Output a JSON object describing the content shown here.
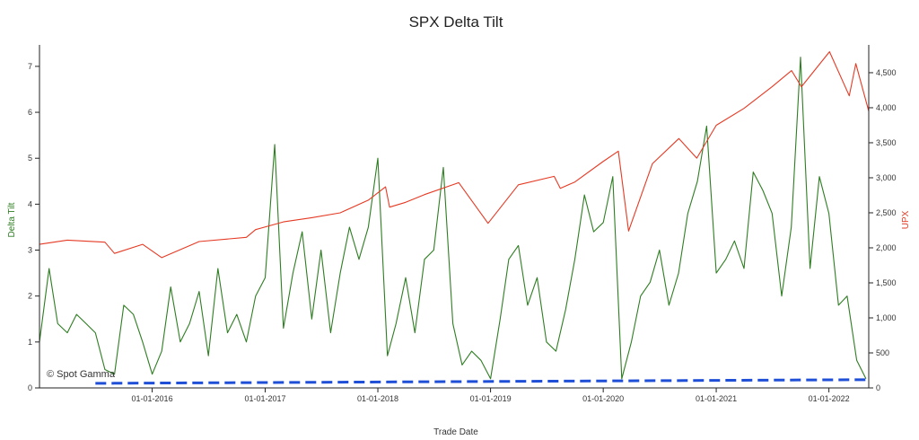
{
  "chart_data": {
    "type": "line",
    "title": "SPX Delta Tilt",
    "xlabel": "Trade Date",
    "ylabel_left": "Delta Tilt",
    "ylabel_right": "UPX",
    "watermark": "© Spot Gamma",
    "x_tick_labels": [
      "01-01-2016",
      "01-01-2017",
      "01-01-2018",
      "01-01-2019",
      "01-01-2020",
      "01-01-2021",
      "01-01-2022"
    ],
    "y_left_ticks": [
      "0",
      "1",
      "2",
      "3",
      "4",
      "5",
      "6",
      "7"
    ],
    "y_right_ticks": [
      "0",
      "500",
      "1,000",
      "1,500",
      "2,000",
      "2,500",
      "3,000",
      "3,500",
      "4,000",
      "4,500"
    ],
    "x_range": [
      "2015-01-01",
      "2022-05-10"
    ],
    "y_left_range": [
      0,
      7.35
    ],
    "y_right_range": [
      0,
      4820
    ],
    "grid": false,
    "colors": {
      "delta_tilt": "#2e7d22",
      "upx": "#e53a24",
      "baseline": "#1f4fd6",
      "left_label": "#2e7d22",
      "right_label": "#e53a24"
    },
    "series": [
      {
        "key": "delta_tilt",
        "axis": "left",
        "x": [
          "2015-01-01",
          "2015-02-01",
          "2015-03-01",
          "2015-04-01",
          "2015-05-01",
          "2015-06-01",
          "2015-07-01",
          "2015-08-01",
          "2015-09-01",
          "2015-10-01",
          "2015-11-01",
          "2015-12-01",
          "2016-01-01",
          "2016-02-01",
          "2016-03-01",
          "2016-04-01",
          "2016-05-01",
          "2016-06-01",
          "2016-07-01",
          "2016-08-01",
          "2016-09-01",
          "2016-10-01",
          "2016-11-01",
          "2016-12-01",
          "2017-01-01",
          "2017-02-01",
          "2017-03-01",
          "2017-04-01",
          "2017-05-01",
          "2017-06-01",
          "2017-07-01",
          "2017-08-01",
          "2017-09-01",
          "2017-10-01",
          "2017-11-01",
          "2017-12-01",
          "2018-01-01",
          "2018-02-01",
          "2018-03-01",
          "2018-04-01",
          "2018-05-01",
          "2018-06-01",
          "2018-07-01",
          "2018-08-01",
          "2018-09-01",
          "2018-10-01",
          "2018-11-01",
          "2018-12-01",
          "2019-01-01",
          "2019-02-01",
          "2019-03-01",
          "2019-04-01",
          "2019-05-01",
          "2019-06-01",
          "2019-07-01",
          "2019-08-01",
          "2019-09-01",
          "2019-10-01",
          "2019-11-01",
          "2019-12-01",
          "2020-01-01",
          "2020-02-01",
          "2020-03-01",
          "2020-04-01",
          "2020-05-01",
          "2020-06-01",
          "2020-07-01",
          "2020-08-01",
          "2020-09-01",
          "2020-10-01",
          "2020-11-01",
          "2020-12-01",
          "2021-01-01",
          "2021-02-01",
          "2021-03-01",
          "2021-04-01",
          "2021-05-01",
          "2021-06-01",
          "2021-07-01",
          "2021-08-01",
          "2021-09-01",
          "2021-10-01",
          "2021-11-01",
          "2021-12-01",
          "2022-01-01",
          "2022-02-01",
          "2022-03-01",
          "2022-04-01",
          "2022-05-01"
        ],
        "values": [
          1.0,
          2.6,
          1.4,
          1.2,
          1.6,
          1.4,
          1.2,
          0.4,
          0.3,
          1.8,
          1.6,
          1.0,
          0.3,
          0.8,
          2.2,
          1.0,
          1.4,
          2.1,
          0.7,
          2.6,
          1.2,
          1.6,
          1.0,
          2.0,
          2.4,
          5.3,
          1.3,
          2.5,
          3.4,
          1.5,
          3.0,
          1.2,
          2.5,
          3.5,
          2.8,
          3.5,
          5.0,
          0.7,
          1.4,
          2.4,
          1.2,
          2.8,
          3.0,
          4.8,
          1.4,
          0.5,
          0.8,
          0.6,
          0.2,
          1.5,
          2.8,
          3.1,
          1.8,
          2.4,
          1.0,
          0.8,
          1.7,
          2.8,
          4.2,
          3.4,
          3.6,
          4.6,
          0.2,
          1.0,
          2.0,
          2.3,
          3.0,
          1.8,
          2.5,
          3.8,
          4.5,
          5.7,
          2.5,
          2.8,
          3.2,
          2.6,
          4.7,
          4.3,
          3.8,
          2.0,
          3.5,
          7.2,
          2.6,
          4.6,
          3.8,
          1.8,
          2.0,
          0.6,
          0.2
        ],
        "name": ""
      },
      {
        "key": "upx",
        "axis": "right",
        "x": [
          "2015-01-01",
          "2015-04-01",
          "2015-08-01",
          "2015-09-01",
          "2015-12-01",
          "2016-02-01",
          "2016-06-01",
          "2016-11-01",
          "2016-12-01",
          "2017-03-01",
          "2017-06-01",
          "2017-09-01",
          "2017-12-01",
          "2018-01-26",
          "2018-02-08",
          "2018-04-01",
          "2018-06-01",
          "2018-09-20",
          "2018-12-24",
          "2019-04-01",
          "2019-07-26",
          "2019-08-15",
          "2019-10-01",
          "2019-12-31",
          "2020-02-19",
          "2020-03-23",
          "2020-06-08",
          "2020-09-02",
          "2020-10-30",
          "2021-01-01",
          "2021-04-01",
          "2021-07-01",
          "2021-09-02",
          "2021-10-04",
          "2022-01-03",
          "2022-03-08",
          "2022-03-29",
          "2022-05-10"
        ],
        "values": [
          2050,
          2110,
          2080,
          1920,
          2050,
          1860,
          2090,
          2150,
          2260,
          2370,
          2430,
          2500,
          2680,
          2870,
          2580,
          2650,
          2760,
          2930,
          2350,
          2900,
          3020,
          2850,
          2940,
          3230,
          3380,
          2240,
          3200,
          3560,
          3280,
          3750,
          3990,
          4300,
          4530,
          4300,
          4800,
          4170,
          4630,
          3950
        ],
        "name": ""
      },
      {
        "key": "baseline",
        "axis": "left",
        "style": "dashed",
        "x": [
          "2015-07-01",
          "2022-05-10"
        ],
        "values": [
          0.1,
          0.18
        ],
        "name": ""
      }
    ]
  }
}
